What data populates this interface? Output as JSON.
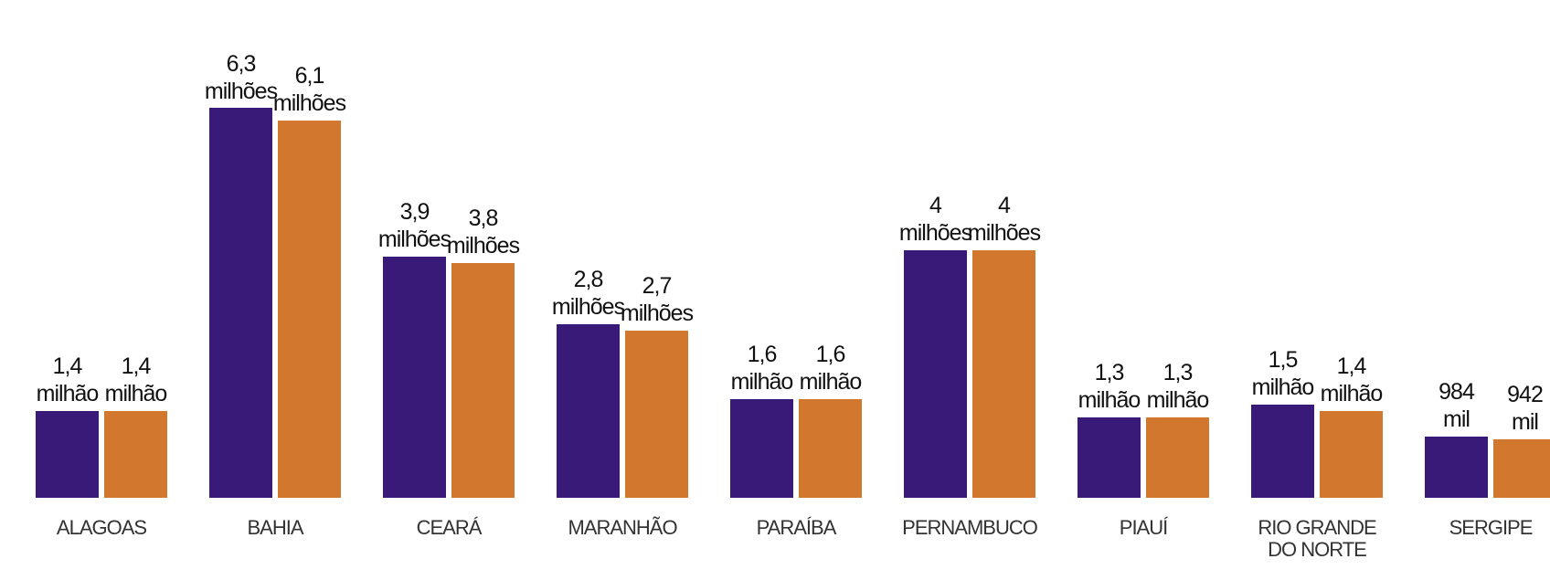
{
  "chart_data": {
    "type": "bar",
    "categories": [
      "ALAGOAS",
      "BAHIA",
      "CEARÁ",
      "MARANHÃO",
      "PARAÍBA",
      "PERNAMBUCO",
      "PIAUÍ",
      "RIO GRANDE DO NORTE",
      "SERGIPE"
    ],
    "series": [
      {
        "color": "#3a1a78",
        "values": [
          1.4,
          6.3,
          3.9,
          2.8,
          1.6,
          4,
          1.3,
          1.5,
          0.984
        ],
        "value_labels": [
          "1,4 milhão",
          "6,3 milhões",
          "3,9 milhões",
          "2,8 milhões",
          "1,6 milhão",
          "4 milhões",
          "1,3 milhão",
          "1,5 milhão",
          "984 mil"
        ]
      },
      {
        "color": "#d2782e",
        "values": [
          1.4,
          6.1,
          3.8,
          2.7,
          1.6,
          4,
          1.3,
          1.4,
          0.942
        ],
        "value_labels": [
          "1,4 milhão",
          "6,1 milhões",
          "3,8 milhões",
          "2,7 milhões",
          "1,6 milhão",
          "4 milhões",
          "1,3 milhão",
          "1,4 milhão",
          "942 mil"
        ]
      }
    ]
  }
}
